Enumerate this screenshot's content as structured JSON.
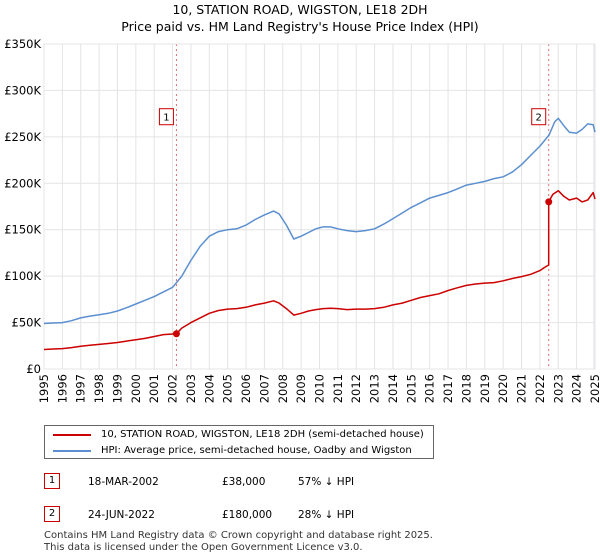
{
  "chart_data": {
    "type": "line",
    "title": "10, STATION ROAD, WIGSTON, LE18 2DH",
    "subtitle": "Price paid vs. HM Land Registry's House Price Index (HPI)",
    "xlabel": "",
    "ylabel": "",
    "xlim": [
      1995,
      2025
    ],
    "ylim": [
      0,
      350000
    ],
    "x_ticks": [
      "1995",
      "1996",
      "1997",
      "1998",
      "1999",
      "2000",
      "2001",
      "2002",
      "2003",
      "2004",
      "2005",
      "2006",
      "2007",
      "2008",
      "2009",
      "2010",
      "2011",
      "2012",
      "2013",
      "2014",
      "2015",
      "2016",
      "2017",
      "2018",
      "2019",
      "2020",
      "2021",
      "2022",
      "2023",
      "2024",
      "2025"
    ],
    "y_ticks": [
      {
        "value": 0,
        "label": "£0"
      },
      {
        "value": 50000,
        "label": "£50K"
      },
      {
        "value": 100000,
        "label": "£100K"
      },
      {
        "value": 150000,
        "label": "£150K"
      },
      {
        "value": 200000,
        "label": "£200K"
      },
      {
        "value": 250000,
        "label": "£250K"
      },
      {
        "value": 300000,
        "label": "£300K"
      },
      {
        "value": 350000,
        "label": "£350K"
      }
    ],
    "grid": true,
    "series": [
      {
        "name": "10, STATION ROAD, WIGSTON, LE18 2DH (semi-detached house)",
        "color": "#cc0000",
        "x": [
          1995.0,
          1995.5,
          1996.0,
          1996.5,
          1997.0,
          1997.5,
          1998.0,
          1998.5,
          1999.0,
          1999.5,
          2000.0,
          2000.5,
          2001.0,
          2001.5,
          2002.21,
          2002.5,
          2003.0,
          2003.5,
          2004.0,
          2004.5,
          2005.0,
          2005.5,
          2006.0,
          2006.5,
          2007.0,
          2007.5,
          2007.8,
          2008.2,
          2008.6,
          2009.0,
          2009.4,
          2009.8,
          2010.2,
          2010.6,
          2011.0,
          2011.5,
          2012.0,
          2012.5,
          2013.0,
          2013.5,
          2014.0,
          2014.5,
          2015.0,
          2015.5,
          2016.0,
          2016.5,
          2017.0,
          2017.5,
          2018.0,
          2018.5,
          2019.0,
          2019.5,
          2020.0,
          2020.5,
          2021.0,
          2021.5,
          2022.0,
          2022.3,
          2022.48,
          2022.48,
          2022.7,
          2023.0,
          2023.3,
          2023.6,
          2024.0,
          2024.3,
          2024.6,
          2024.9,
          2025.0
        ],
        "values": [
          21000,
          21500,
          22000,
          23000,
          24500,
          25500,
          26500,
          27500,
          28500,
          30000,
          31500,
          33000,
          35000,
          37000,
          38000,
          44000,
          50000,
          55000,
          60000,
          63000,
          64500,
          65000,
          66500,
          69000,
          71000,
          73500,
          71000,
          65000,
          58000,
          60000,
          62500,
          64000,
          65000,
          65500,
          65000,
          64000,
          64500,
          64500,
          65000,
          66500,
          69000,
          71000,
          74000,
          77000,
          79000,
          81000,
          84500,
          87500,
          90000,
          91500,
          92500,
          93000,
          95000,
          97500,
          99500,
          102000,
          106000,
          110000,
          112000,
          180000,
          188000,
          192000,
          186000,
          182000,
          184000,
          180000,
          182000,
          190000,
          183000
        ]
      },
      {
        "name": "HPI: Average price, semi-detached house, Oadby and Wigston",
        "color": "#5b8fd0",
        "x": [
          1995.0,
          1995.5,
          1996.0,
          1996.5,
          1997.0,
          1997.5,
          1998.0,
          1998.5,
          1999.0,
          1999.5,
          2000.0,
          2000.5,
          2001.0,
          2001.5,
          2002.0,
          2002.5,
          2003.0,
          2003.5,
          2004.0,
          2004.5,
          2005.0,
          2005.5,
          2006.0,
          2006.5,
          2007.0,
          2007.5,
          2007.8,
          2008.2,
          2008.6,
          2009.0,
          2009.4,
          2009.8,
          2010.2,
          2010.6,
          2011.0,
          2011.5,
          2012.0,
          2012.5,
          2013.0,
          2013.5,
          2014.0,
          2014.5,
          2015.0,
          2015.5,
          2016.0,
          2016.5,
          2017.0,
          2017.5,
          2018.0,
          2018.5,
          2019.0,
          2019.5,
          2020.0,
          2020.5,
          2021.0,
          2021.5,
          2022.0,
          2022.5,
          2022.8,
          2023.0,
          2023.3,
          2023.6,
          2024.0,
          2024.3,
          2024.6,
          2024.9,
          2025.0
        ],
        "values": [
          49000,
          49500,
          50000,
          52000,
          55000,
          57000,
          58500,
          60000,
          62500,
          66000,
          70000,
          74000,
          78000,
          83000,
          88000,
          100000,
          117000,
          132000,
          143000,
          148000,
          150000,
          151000,
          155000,
          161000,
          166000,
          170000,
          167000,
          155000,
          140000,
          143000,
          147000,
          151000,
          153000,
          153000,
          151000,
          149000,
          148000,
          149000,
          151000,
          156000,
          162000,
          168000,
          174000,
          179000,
          184000,
          187000,
          190000,
          194000,
          198000,
          200000,
          202000,
          205000,
          207000,
          212000,
          220000,
          230000,
          240000,
          252000,
          266000,
          270000,
          262000,
          255000,
          254000,
          258000,
          264000,
          263000,
          255000
        ]
      }
    ],
    "annotations": [
      {
        "id": "1",
        "x": 2002.21,
        "value": 38000
      },
      {
        "id": "2",
        "x": 2022.48,
        "value": 180000
      }
    ],
    "sales": [
      {
        "id": "1",
        "date": "18-MAR-2002",
        "price": "£38,000",
        "hpi": "57% ↓ HPI"
      },
      {
        "id": "2",
        "date": "24-JUN-2022",
        "price": "£180,000",
        "hpi": "28% ↓ HPI"
      }
    ]
  },
  "footer": {
    "line1": "Contains HM Land Registry data © Crown copyright and database right 2025.",
    "line2": "This data is licensed under the Open Government Licence v3.0."
  }
}
